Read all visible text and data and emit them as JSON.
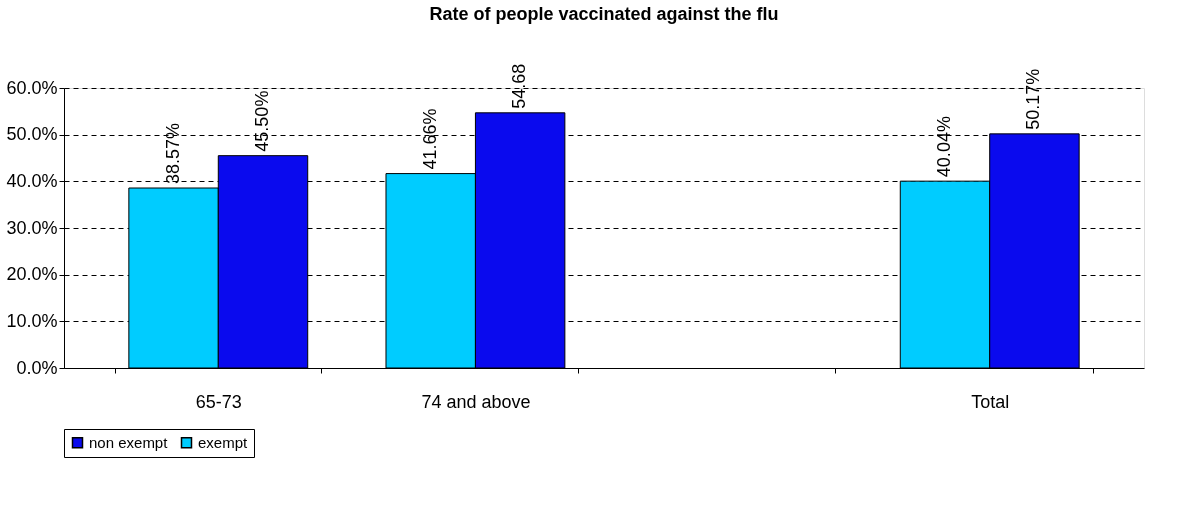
{
  "chart_data": {
    "type": "bar",
    "title": "Rate of people vaccinated against the flu",
    "categories": [
      "65-73",
      "74 and above",
      null,
      "Total"
    ],
    "series": [
      {
        "name": "exempt",
        "color": "#00ccff",
        "values": [
          38.57,
          41.66,
          null,
          40.04
        ],
        "value_labels": [
          "38.57%",
          "41.66%",
          null,
          "40.04%"
        ]
      },
      {
        "name": "non exempt",
        "color": "#0a0aee",
        "values": [
          45.5,
          54.68,
          null,
          50.17
        ],
        "value_labels": [
          "45.50%",
          "54.68",
          null,
          "50.17%"
        ]
      }
    ],
    "ylim": [
      0,
      60
    ],
    "yticks": [
      {
        "value": 0,
        "label": "0.0%"
      },
      {
        "value": 10,
        "label": "10.0%"
      },
      {
        "value": 20,
        "label": "20.0%"
      },
      {
        "value": 30,
        "label": "30.0%"
      },
      {
        "value": 40,
        "label": "40.0%"
      },
      {
        "value": 50,
        "label": "50.0%"
      },
      {
        "value": 60,
        "label": "60.0%"
      }
    ],
    "grid": "y",
    "legend": "bottom"
  }
}
